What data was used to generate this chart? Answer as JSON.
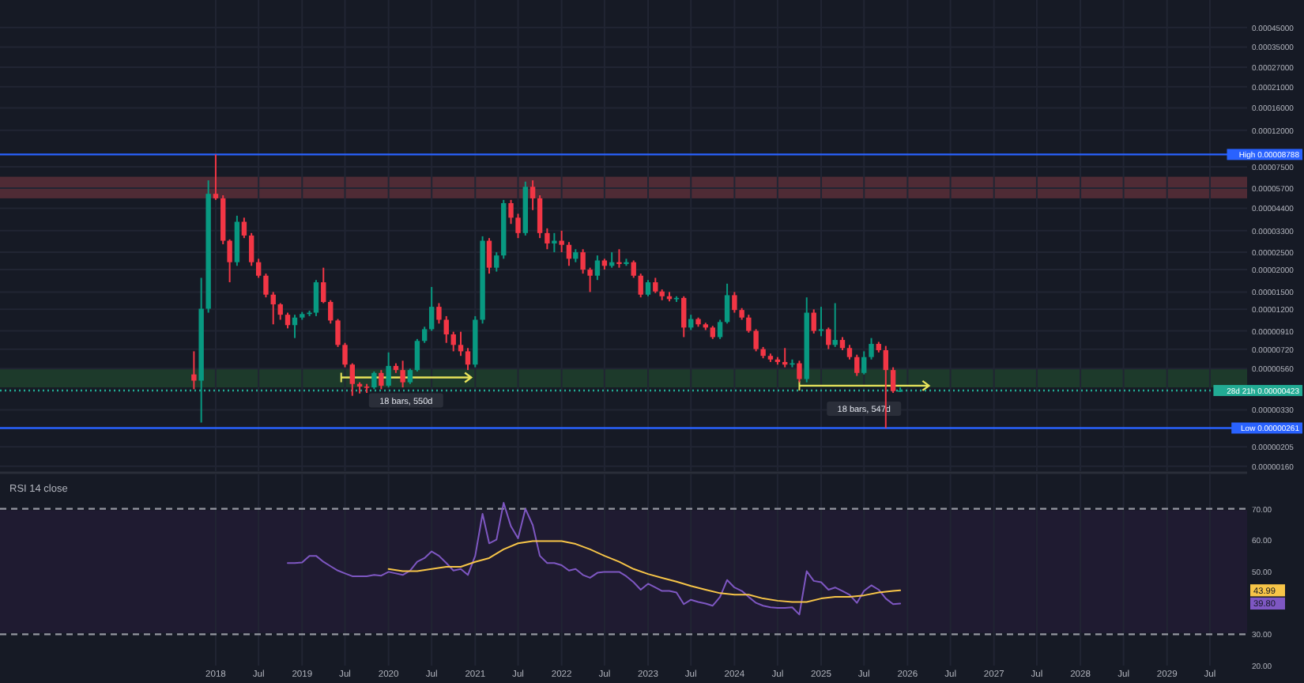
{
  "chart_data": [
    {
      "type": "candlestick",
      "log": true,
      "grid": true,
      "tick_labels": "y",
      "xlim": [
        "2015-07-05",
        "2029-12-05"
      ],
      "ylim": [
        1.5e-06,
        0.00064
      ],
      "xticks": [
        {
          "value": "2018",
          "label": null
        },
        {
          "value": "2018-07",
          "label": null
        },
        {
          "value": "2019",
          "label": null
        },
        {
          "value": "2019-07",
          "label": null
        },
        {
          "value": "2020",
          "label": null
        },
        {
          "value": "2020-07",
          "label": null
        },
        {
          "value": "2021",
          "label": null
        },
        {
          "value": "2021-07",
          "label": null
        },
        {
          "value": "2022",
          "label": null
        },
        {
          "value": "2022-07",
          "label": null
        },
        {
          "value": "2023",
          "label": null
        },
        {
          "value": "2023-07",
          "label": null
        },
        {
          "value": "2024",
          "label": null
        },
        {
          "value": "2024-07",
          "label": null
        },
        {
          "value": "2025",
          "label": null
        },
        {
          "value": "2025-07",
          "label": null
        },
        {
          "value": "2026",
          "label": null
        },
        {
          "value": "2026-07",
          "label": null
        },
        {
          "value": "2027",
          "label": null
        },
        {
          "value": "2027-07",
          "label": null
        },
        {
          "value": "2028",
          "label": null
        },
        {
          "value": "2028-07",
          "label": null
        },
        {
          "value": "2029",
          "label": null
        },
        {
          "value": "2029-07",
          "label": null
        }
      ],
      "yticks": [
        {
          "value": 0.00045,
          "label": "0.00045000"
        },
        {
          "value": 0.00035,
          "label": "0.00035000"
        },
        {
          "value": 0.00027,
          "label": "0.00027000"
        },
        {
          "value": 0.00021,
          "label": "0.00021000"
        },
        {
          "value": 0.00016,
          "label": "0.00016000"
        },
        {
          "value": 0.00012,
          "label": "0.00012000"
        },
        {
          "value": 7.5e-05,
          "label": "0.00007500"
        },
        {
          "value": 5.7e-05,
          "label": "0.00005700"
        },
        {
          "value": 4.4e-05,
          "label": "0.00004400"
        },
        {
          "value": 3.3e-05,
          "label": "0.00003300"
        },
        {
          "value": 2.5e-05,
          "label": "0.00002500"
        },
        {
          "value": 2e-05,
          "label": "0.00002000"
        },
        {
          "value": 1.5e-05,
          "label": "0.00001500"
        },
        {
          "value": 1.2e-05,
          "label": "0.00001200"
        },
        {
          "value": 9.1e-06,
          "label": "0.00000910"
        },
        {
          "value": 7.2e-06,
          "label": "0.00000720"
        },
        {
          "value": 5.6e-06,
          "label": "0.00000560"
        },
        {
          "value": 3.3e-06,
          "label": "0.00000330"
        },
        {
          "value": 2.05e-06,
          "label": "0.00000205"
        },
        {
          "value": 1.6e-06,
          "label": "0.00000160"
        }
      ],
      "x": [
        "2017-10",
        "2017-11",
        "2017-12",
        "2018-01",
        "2018-02",
        "2018-03",
        "2018-04",
        "2018-05",
        "2018-06",
        "2018-07",
        "2018-08",
        "2018-09",
        "2018-10",
        "2018-11",
        "2018-12",
        "2019-01",
        "2019-02",
        "2019-03",
        "2019-04",
        "2019-05",
        "2019-06",
        "2019-07",
        "2019-08",
        "2019-09",
        "2019-10",
        "2019-11",
        "2019-12",
        "2020-01",
        "2020-02",
        "2020-03",
        "2020-04",
        "2020-05",
        "2020-06",
        "2020-07",
        "2020-08",
        "2020-09",
        "2020-10",
        "2020-11",
        "2020-12",
        "2021-01",
        "2021-02",
        "2021-03",
        "2021-04",
        "2021-05",
        "2021-06",
        "2021-07",
        "2021-08",
        "2021-09",
        "2021-10",
        "2021-11",
        "2021-12",
        "2022-01",
        "2022-02",
        "2022-03",
        "2022-04",
        "2022-05",
        "2022-06",
        "2022-07",
        "2022-08",
        "2022-09",
        "2022-10",
        "2022-11",
        "2022-12",
        "2023-01",
        "2023-02",
        "2023-03",
        "2023-04",
        "2023-05",
        "2023-06",
        "2023-07",
        "2023-08",
        "2023-09",
        "2023-10",
        "2023-11",
        "2023-12",
        "2024-01",
        "2024-02",
        "2024-03",
        "2024-04",
        "2024-05",
        "2024-06",
        "2024-07",
        "2024-08",
        "2024-09",
        "2024-10",
        "2024-11",
        "2024-12",
        "2025-01",
        "2025-02",
        "2025-03",
        "2025-04",
        "2025-05",
        "2025-06",
        "2025-07",
        "2025-08",
        "2025-09",
        "2025-10",
        "2025-11",
        "2025-12"
      ],
      "ohlc": [
        [
          5.2e-06,
          7e-06,
          4.3e-06,
          4.8e-06
        ],
        [
          4.8e-06,
          1.8e-05,
          2.8e-06,
          1.21e-05
        ],
        [
          1.21e-05,
          6.3e-05,
          1.15e-05,
          5.3e-05
        ],
        [
          5.3e-05,
          8.788e-05,
          4.9e-05,
          5e-05
        ],
        [
          5e-05,
          5.2e-05,
          2.77e-05,
          2.9e-05
        ],
        [
          2.9e-05,
          2.95e-05,
          1.7e-05,
          2.2e-05
        ],
        [
          2.2e-05,
          4e-05,
          2.1e-05,
          3.7e-05
        ],
        [
          3.7e-05,
          3.9e-05,
          3e-05,
          3.1e-05
        ],
        [
          3.1e-05,
          3.2e-05,
          2.1e-05,
          2.2e-05
        ],
        [
          2.2e-05,
          2.3e-05,
          1.8e-05,
          1.85e-05
        ],
        [
          1.85e-05,
          1.9e-05,
          1.4e-05,
          1.45e-05
        ],
        [
          1.45e-05,
          1.5e-05,
          9.9e-06,
          1.28e-05
        ],
        [
          1.28e-05,
          1.3e-05,
          1.05e-05,
          1.12e-05
        ],
        [
          1.12e-05,
          1.15e-05,
          9.4e-06,
          9.8e-06
        ],
        [
          9.8e-06,
          1.12e-05,
          8.3e-06,
          1.08e-05
        ],
        [
          1.08e-05,
          1.16e-05,
          1.05e-05,
          1.13e-05
        ],
        [
          1.13e-05,
          1.18e-05,
          1.1e-05,
          1.15e-05
        ],
        [
          1.15e-05,
          1.75e-05,
          1.1e-05,
          1.7e-05
        ],
        [
          1.7e-05,
          2.05e-05,
          1.3e-05,
          1.32e-05
        ],
        [
          1.32e-05,
          1.35e-05,
          1e-05,
          1.04e-05
        ],
        [
          1.04e-05,
          1.06e-05,
          7.4e-06,
          7.6e-06
        ],
        [
          7.6e-06,
          7.8e-06,
          5.7e-06,
          5.9e-06
        ],
        [
          5.9e-06,
          6e-06,
          3.95e-06,
          4.6e-06
        ],
        [
          4.6e-06,
          4.7e-06,
          4.07e-06,
          4.45e-06
        ],
        [
          4.45e-06,
          4.6e-06,
          4.1e-06,
          4.4e-06
        ],
        [
          4.4e-06,
          5.4e-06,
          4.3e-06,
          5.3e-06
        ],
        [
          5.3e-06,
          5.5e-06,
          4.3e-06,
          4.5e-06
        ],
        [
          4.5e-06,
          6.9e-06,
          4.4e-06,
          5.8e-06
        ],
        [
          5.8e-06,
          6e-06,
          5.3e-06,
          5.5e-06
        ],
        [
          5.5e-06,
          6.2e-06,
          4.4e-06,
          4.7e-06
        ],
        [
          4.7e-06,
          5.6e-06,
          4.6e-06,
          5.5e-06
        ],
        [
          5.5e-06,
          8.2e-06,
          5.4e-06,
          8e-06
        ],
        [
          8e-06,
          9.6e-06,
          7.8e-06,
          9.3e-06
        ],
        [
          9.3e-06,
          1.6e-05,
          9.1e-06,
          1.24e-05
        ],
        [
          1.24e-05,
          1.3e-05,
          1e-05,
          1.05e-05
        ],
        [
          1.05e-05,
          1.1e-05,
          7.8e-06,
          8.7e-06
        ],
        [
          8.7e-06,
          9e-06,
          7e-06,
          7.6e-06
        ],
        [
          7.6e-06,
          9e-06,
          6.6e-06,
          7e-06
        ],
        [
          7e-06,
          7.3e-06,
          5.5e-06,
          5.9e-06
        ],
        [
          5.9e-06,
          1.1e-05,
          5.7e-06,
          1.05e-05
        ],
        [
          1.05e-05,
          3.07e-05,
          1e-05,
          2.9e-05
        ],
        [
          2.9e-05,
          3e-05,
          1.9e-05,
          2.05e-05
        ],
        [
          2.05e-05,
          2.5e-05,
          1.95e-05,
          2.4e-05
        ],
        [
          2.4e-05,
          4.9e-05,
          2.3e-05,
          4.7e-05
        ],
        [
          4.7e-05,
          4.9e-05,
          3.6e-05,
          3.9e-05
        ],
        [
          3.9e-05,
          4.1e-05,
          3e-05,
          3.2e-05
        ],
        [
          3.2e-05,
          6.2e-05,
          3.1e-05,
          5.8e-05
        ],
        [
          5.8e-05,
          6.3e-05,
          4.3e-05,
          5e-05
        ],
        [
          5e-05,
          5.2e-05,
          3e-05,
          3.2e-05
        ],
        [
          3.2e-05,
          3.4e-05,
          2.6e-05,
          2.8e-05
        ],
        [
          2.8e-05,
          3.2e-05,
          2.5e-05,
          2.9e-05
        ],
        [
          2.9e-05,
          3.3e-05,
          2.5e-05,
          2.75e-05
        ],
        [
          2.75e-05,
          2.85e-05,
          2.1e-05,
          2.3e-05
        ],
        [
          2.3e-05,
          2.6e-05,
          2.2e-05,
          2.5e-05
        ],
        [
          2.5e-05,
          2.6e-05,
          1.9e-05,
          2e-05
        ],
        [
          2e-05,
          2.05e-05,
          1.5e-05,
          1.85e-05
        ],
        [
          1.85e-05,
          2.4e-05,
          1.75e-05,
          2.25e-05
        ],
        [
          2.25e-05,
          2.3e-05,
          2e-05,
          2.1e-05
        ],
        [
          2.1e-05,
          2.5e-05,
          2.05e-05,
          2.2e-05
        ],
        [
          2.2e-05,
          2.6e-05,
          2.05e-05,
          2.15e-05
        ],
        [
          2.15e-05,
          2.3e-05,
          2.1e-05,
          2.2e-05
        ],
        [
          2.2e-05,
          2.25e-05,
          1.8e-05,
          1.85e-05
        ],
        [
          1.85e-05,
          1.9e-05,
          1.4e-05,
          1.45e-05
        ],
        [
          1.45e-05,
          1.75e-05,
          1.42e-05,
          1.7e-05
        ],
        [
          1.7e-05,
          1.8e-05,
          1.48e-05,
          1.51e-05
        ],
        [
          1.51e-05,
          1.55e-05,
          1.35e-05,
          1.42e-05
        ],
        [
          1.42e-05,
          1.5e-05,
          1.33e-05,
          1.37e-05
        ],
        [
          1.37e-05,
          1.42e-05,
          1.32e-05,
          1.39e-05
        ],
        [
          1.39e-05,
          1.42e-05,
          8.4e-06,
          9.5e-06
        ],
        [
          9.5e-06,
          1.12e-05,
          9.2e-06,
          1.06e-05
        ],
        [
          1.06e-05,
          1.08e-05,
          9.6e-06,
          9.9e-06
        ],
        [
          9.9e-06,
          1.01e-05,
          9.2e-06,
          9.5e-06
        ],
        [
          9.5e-06,
          9.7e-06,
          8.2e-06,
          8.4e-06
        ],
        [
          8.4e-06,
          1.05e-05,
          8.2e-06,
          1.02e-05
        ],
        [
          1.02e-05,
          1.67e-05,
          1e-05,
          1.44e-05
        ],
        [
          1.44e-05,
          1.5e-05,
          1.15e-05,
          1.19e-05
        ],
        [
          1.19e-05,
          1.22e-05,
          1.05e-05,
          1.08e-05
        ],
        [
          1.08e-05,
          1.12e-05,
          8.9e-06,
          9.1e-06
        ],
        [
          9.1e-06,
          9.3e-06,
          7e-06,
          7.2e-06
        ],
        [
          7.2e-06,
          7.4e-06,
          6.4e-06,
          6.6e-06
        ],
        [
          6.6e-06,
          6.8e-06,
          6.1e-06,
          6.3e-06
        ],
        [
          6.3e-06,
          6.5e-06,
          5.9e-06,
          6.1e-06
        ],
        [
          6.1e-06,
          7.3e-06,
          5.7e-06,
          5.9e-06
        ],
        [
          5.9e-06,
          6.3e-06,
          5.7e-06,
          6e-06
        ],
        [
          6e-06,
          6.2e-06,
          4.7e-06,
          4.9e-06
        ],
        [
          4.9e-06,
          1.4e-05,
          4.7e-06,
          1.15e-05
        ],
        [
          1.15e-05,
          1.2e-05,
          8.8e-06,
          9.1e-06
        ],
        [
          9.1e-06,
          1.24e-05,
          8.5e-06,
          9.3e-06
        ],
        [
          9.3e-06,
          9.5e-06,
          7.2e-06,
          7.6e-06
        ],
        [
          7.6e-06,
          1.3e-05,
          7.4e-06,
          8.1e-06
        ],
        [
          8.1e-06,
          8.4e-06,
          7.1e-06,
          7.3e-06
        ],
        [
          7.3e-06,
          7.6e-06,
          6.3e-06,
          6.5e-06
        ],
        [
          6.5e-06,
          6.7e-06,
          5.1e-06,
          5.3e-06
        ],
        [
          5.3e-06,
          7e-06,
          5.2e-06,
          6.5e-06
        ],
        [
          6.5e-06,
          8.3e-06,
          6.3e-06,
          7.7e-06
        ],
        [
          7.7e-06,
          7.9e-06,
          6.9e-06,
          7.1e-06
        ],
        [
          7.1e-06,
          7.5e-06,
          2.61e-06,
          5.5e-06
        ],
        [
          5.5e-06,
          5.7e-06,
          4.1e-06,
          4.2e-06
        ],
        [
          4.2e-06,
          4.4e-06,
          4.15e-06,
          4.23e-06
        ]
      ],
      "bands": [
        {
          "axis": "y",
          "from": 5e-05,
          "to": 6.6e-05,
          "color": "#4f2b35"
        },
        {
          "axis": "y",
          "from": 4.4e-06,
          "to": 5.6e-06,
          "color": "#1d3a2b"
        }
      ],
      "ref_lines": [
        {
          "axis": "y",
          "value": 8.788e-05,
          "label": "High 0.00008788",
          "color": "#2962ff",
          "line_style": "solid"
        },
        {
          "axis": "y",
          "value": 2.61e-06,
          "label": "Low 0.00000261",
          "color": "#2962ff",
          "line_style": "solid"
        },
        {
          "axis": "y",
          "value": 4.23e-06,
          "label": "28d 21h 0.00000423",
          "color": "#22ab94",
          "line_style": "dotted"
        }
      ],
      "annotations": [
        {
          "text": "18 bars, 550d",
          "x": "2020-03-15",
          "y": 5e-06
        },
        {
          "text": "18 bars, 547d",
          "x": "2025-07-01",
          "y": 4.5e-06
        }
      ]
    },
    {
      "type": "line",
      "title": "RSI 14 close",
      "grid": "x",
      "xlim": [
        "2015-07-05",
        "2029-12-05"
      ],
      "ylim": [
        20,
        81
      ],
      "xticks": [
        {
          "value": "2018",
          "label": "2018"
        },
        {
          "value": "2018-07",
          "label": "Jul"
        },
        {
          "value": "2019",
          "label": "2019"
        },
        {
          "value": "2019-07",
          "label": "Jul"
        },
        {
          "value": "2020",
          "label": "2020"
        },
        {
          "value": "2020-07",
          "label": "Jul"
        },
        {
          "value": "2021",
          "label": "2021"
        },
        {
          "value": "2021-07",
          "label": "Jul"
        },
        {
          "value": "2022",
          "label": "2022"
        },
        {
          "value": "2022-07",
          "label": "Jul"
        },
        {
          "value": "2023",
          "label": "2023"
        },
        {
          "value": "2023-07",
          "label": "Jul"
        },
        {
          "value": "2024",
          "label": "2024"
        },
        {
          "value": "2024-07",
          "label": "Jul"
        },
        {
          "value": "2025",
          "label": "2025"
        },
        {
          "value": "2025-07",
          "label": "Jul"
        },
        {
          "value": "2026",
          "label": "2026"
        },
        {
          "value": "2026-07",
          "label": "Jul"
        },
        {
          "value": "2027",
          "label": "2027"
        },
        {
          "value": "2027-07",
          "label": "Jul"
        },
        {
          "value": "2028",
          "label": "2028"
        },
        {
          "value": "2028-07",
          "label": "Jul"
        },
        {
          "value": "2029",
          "label": "2029"
        },
        {
          "value": "2029-07",
          "label": "Jul"
        }
      ],
      "yticks": [
        {
          "value": 70,
          "label": "70.00"
        },
        {
          "value": 60,
          "label": "60.00"
        },
        {
          "value": 50,
          "label": "50.00"
        },
        {
          "value": 30,
          "label": "30.00"
        },
        {
          "value": 20,
          "label": "20.00"
        }
      ],
      "bands": [
        {
          "axis": "y",
          "from": 30,
          "to": 70,
          "color": "#1f1b31"
        }
      ],
      "ref_lines": [
        {
          "axis": "y",
          "value": 70,
          "color": "#9598a1",
          "line_style": "dashed"
        },
        {
          "axis": "y",
          "value": 30,
          "color": "#9598a1",
          "line_style": "dashed"
        }
      ],
      "series": [
        {
          "color": "#7e57c2",
          "x": [
            "2018-11",
            "2018-12",
            "2019-01",
            "2019-02",
            "2019-03",
            "2019-04",
            "2019-05",
            "2019-06",
            "2019-07",
            "2019-08",
            "2019-09",
            "2019-10",
            "2019-11",
            "2019-12",
            "2020-01",
            "2020-02",
            "2020-03",
            "2020-04",
            "2020-05",
            "2020-06",
            "2020-07",
            "2020-08",
            "2020-09",
            "2020-10",
            "2020-11",
            "2020-12",
            "2021-01",
            "2021-02",
            "2021-03",
            "2021-04",
            "2021-05",
            "2021-06",
            "2021-07",
            "2021-08",
            "2021-09",
            "2021-10",
            "2021-11",
            "2021-12",
            "2022-01",
            "2022-02",
            "2022-03",
            "2022-04",
            "2022-05",
            "2022-06",
            "2022-07",
            "2022-08",
            "2022-09",
            "2022-10",
            "2022-11",
            "2022-12",
            "2023-01",
            "2023-02",
            "2023-03",
            "2023-04",
            "2023-05",
            "2023-06",
            "2023-07",
            "2023-08",
            "2023-09",
            "2023-10",
            "2023-11",
            "2023-12",
            "2024-01",
            "2024-02",
            "2024-03",
            "2024-04",
            "2024-05",
            "2024-06",
            "2024-07",
            "2024-08",
            "2024-09",
            "2024-10",
            "2024-11",
            "2024-12",
            "2025-01",
            "2025-02",
            "2025-03",
            "2025-04",
            "2025-05",
            "2025-06",
            "2025-07",
            "2025-08",
            "2025-09",
            "2025-10",
            "2025-11",
            "2025-12"
          ],
          "values": [
            52.7,
            52.7,
            52.9,
            55.0,
            55.0,
            53.1,
            51.7,
            50.3,
            49.4,
            48.5,
            48.5,
            48.5,
            48.9,
            48.7,
            49.9,
            49.4,
            48.9,
            50.3,
            53.1,
            54.3,
            56.4,
            55.0,
            52.7,
            50.3,
            50.8,
            48.9,
            55.0,
            68.4,
            59.0,
            60.2,
            71.9,
            64.4,
            60.6,
            70.0,
            64.8,
            55.0,
            52.7,
            52.7,
            52.0,
            50.3,
            50.8,
            48.9,
            48.0,
            49.6,
            49.9,
            49.9,
            49.9,
            48.5,
            46.6,
            44.2,
            46.1,
            44.9,
            43.8,
            43.8,
            43.3,
            39.6,
            41.0,
            40.3,
            39.8,
            39.1,
            41.9,
            47.3,
            44.9,
            43.8,
            41.9,
            40.0,
            39.1,
            38.6,
            38.4,
            38.4,
            38.6,
            36.3,
            50.1,
            47.0,
            46.6,
            44.2,
            44.9,
            43.8,
            42.6,
            40.0,
            43.8,
            45.6,
            44.2,
            41.4,
            39.6,
            39.8
          ]
        },
        {
          "color": "#f7c548",
          "x": [
            "2020-01",
            "2020-03",
            "2020-05",
            "2020-07",
            "2020-09",
            "2020-11",
            "2021-01",
            "2021-03",
            "2021-05",
            "2021-07",
            "2021-09",
            "2021-11",
            "2022-01",
            "2022-03",
            "2022-05",
            "2022-07",
            "2022-09",
            "2022-11",
            "2023-01",
            "2023-03",
            "2023-05",
            "2023-07",
            "2023-09",
            "2023-11",
            "2024-01",
            "2024-03",
            "2024-05",
            "2024-07",
            "2024-09",
            "2024-11",
            "2025-01",
            "2025-03",
            "2025-05",
            "2025-07",
            "2025-09",
            "2025-11",
            "2025-12"
          ],
          "values": [
            50.8,
            50.1,
            50.1,
            50.8,
            51.5,
            51.5,
            53.1,
            54.3,
            57.1,
            59.0,
            59.7,
            59.7,
            59.7,
            58.8,
            57.1,
            55.0,
            53.1,
            50.8,
            49.2,
            48.0,
            46.8,
            45.4,
            44.2,
            43.1,
            42.6,
            42.6,
            41.4,
            40.7,
            40.3,
            40.3,
            41.4,
            41.9,
            41.9,
            42.4,
            43.3,
            43.8,
            44.0
          ]
        }
      ],
      "annotations": [
        "39.80",
        "43.99"
      ]
    }
  ]
}
